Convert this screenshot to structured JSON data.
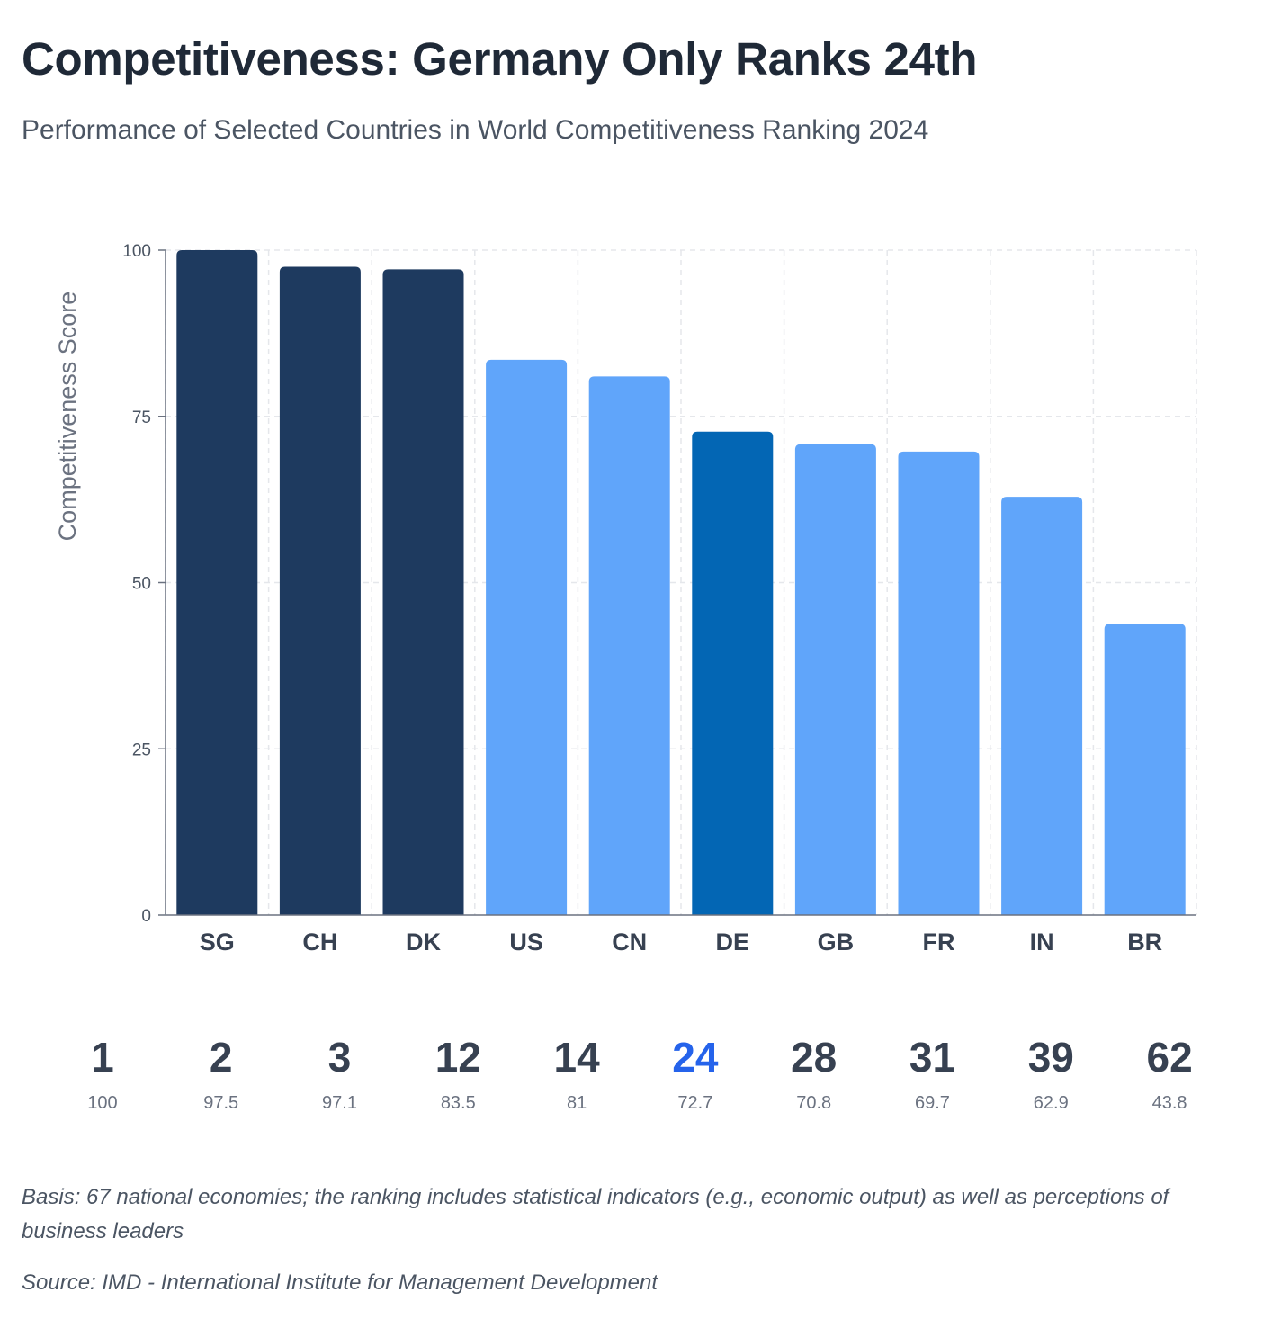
{
  "title": "Competitiveness: Germany Only Ranks 24th",
  "subtitle": "Performance of Selected Countries in World Competitiveness Ranking 2024",
  "chart_data": {
    "type": "bar",
    "categories": [
      "SG",
      "CH",
      "DK",
      "US",
      "CN",
      "DE",
      "GB",
      "FR",
      "IN",
      "BR"
    ],
    "values": [
      100,
      97.5,
      97.1,
      83.5,
      81,
      72.7,
      70.8,
      69.7,
      62.9,
      43.8
    ],
    "ranks": [
      "1",
      "2",
      "3",
      "12",
      "14",
      "24",
      "28",
      "31",
      "39",
      "62"
    ],
    "score_labels": [
      "100",
      "97.5",
      "97.1",
      "83.5",
      "81",
      "72.7",
      "70.8",
      "69.7",
      "62.9",
      "43.8"
    ],
    "highlight": "DE",
    "colors": [
      "#1e3a5f",
      "#1e3a5f",
      "#1e3a5f",
      "#60a5fa",
      "#60a5fa",
      "#0366b4",
      "#60a5fa",
      "#60a5fa",
      "#60a5fa",
      "#60a5fa"
    ],
    "highlight_rank_color": "#2563eb",
    "ylabel": "Competitiveness Score",
    "xlabel": "",
    "ylim": [
      0,
      100
    ],
    "yticks": [
      "0",
      "25",
      "50",
      "75",
      "100"
    ],
    "grid": true
  },
  "footnote": "Basis: 67 national economies; the ranking includes statistical indicators (e.g., economic output) as well as perceptions of business leaders",
  "source": "Source: IMD - International Institute for Management Development"
}
